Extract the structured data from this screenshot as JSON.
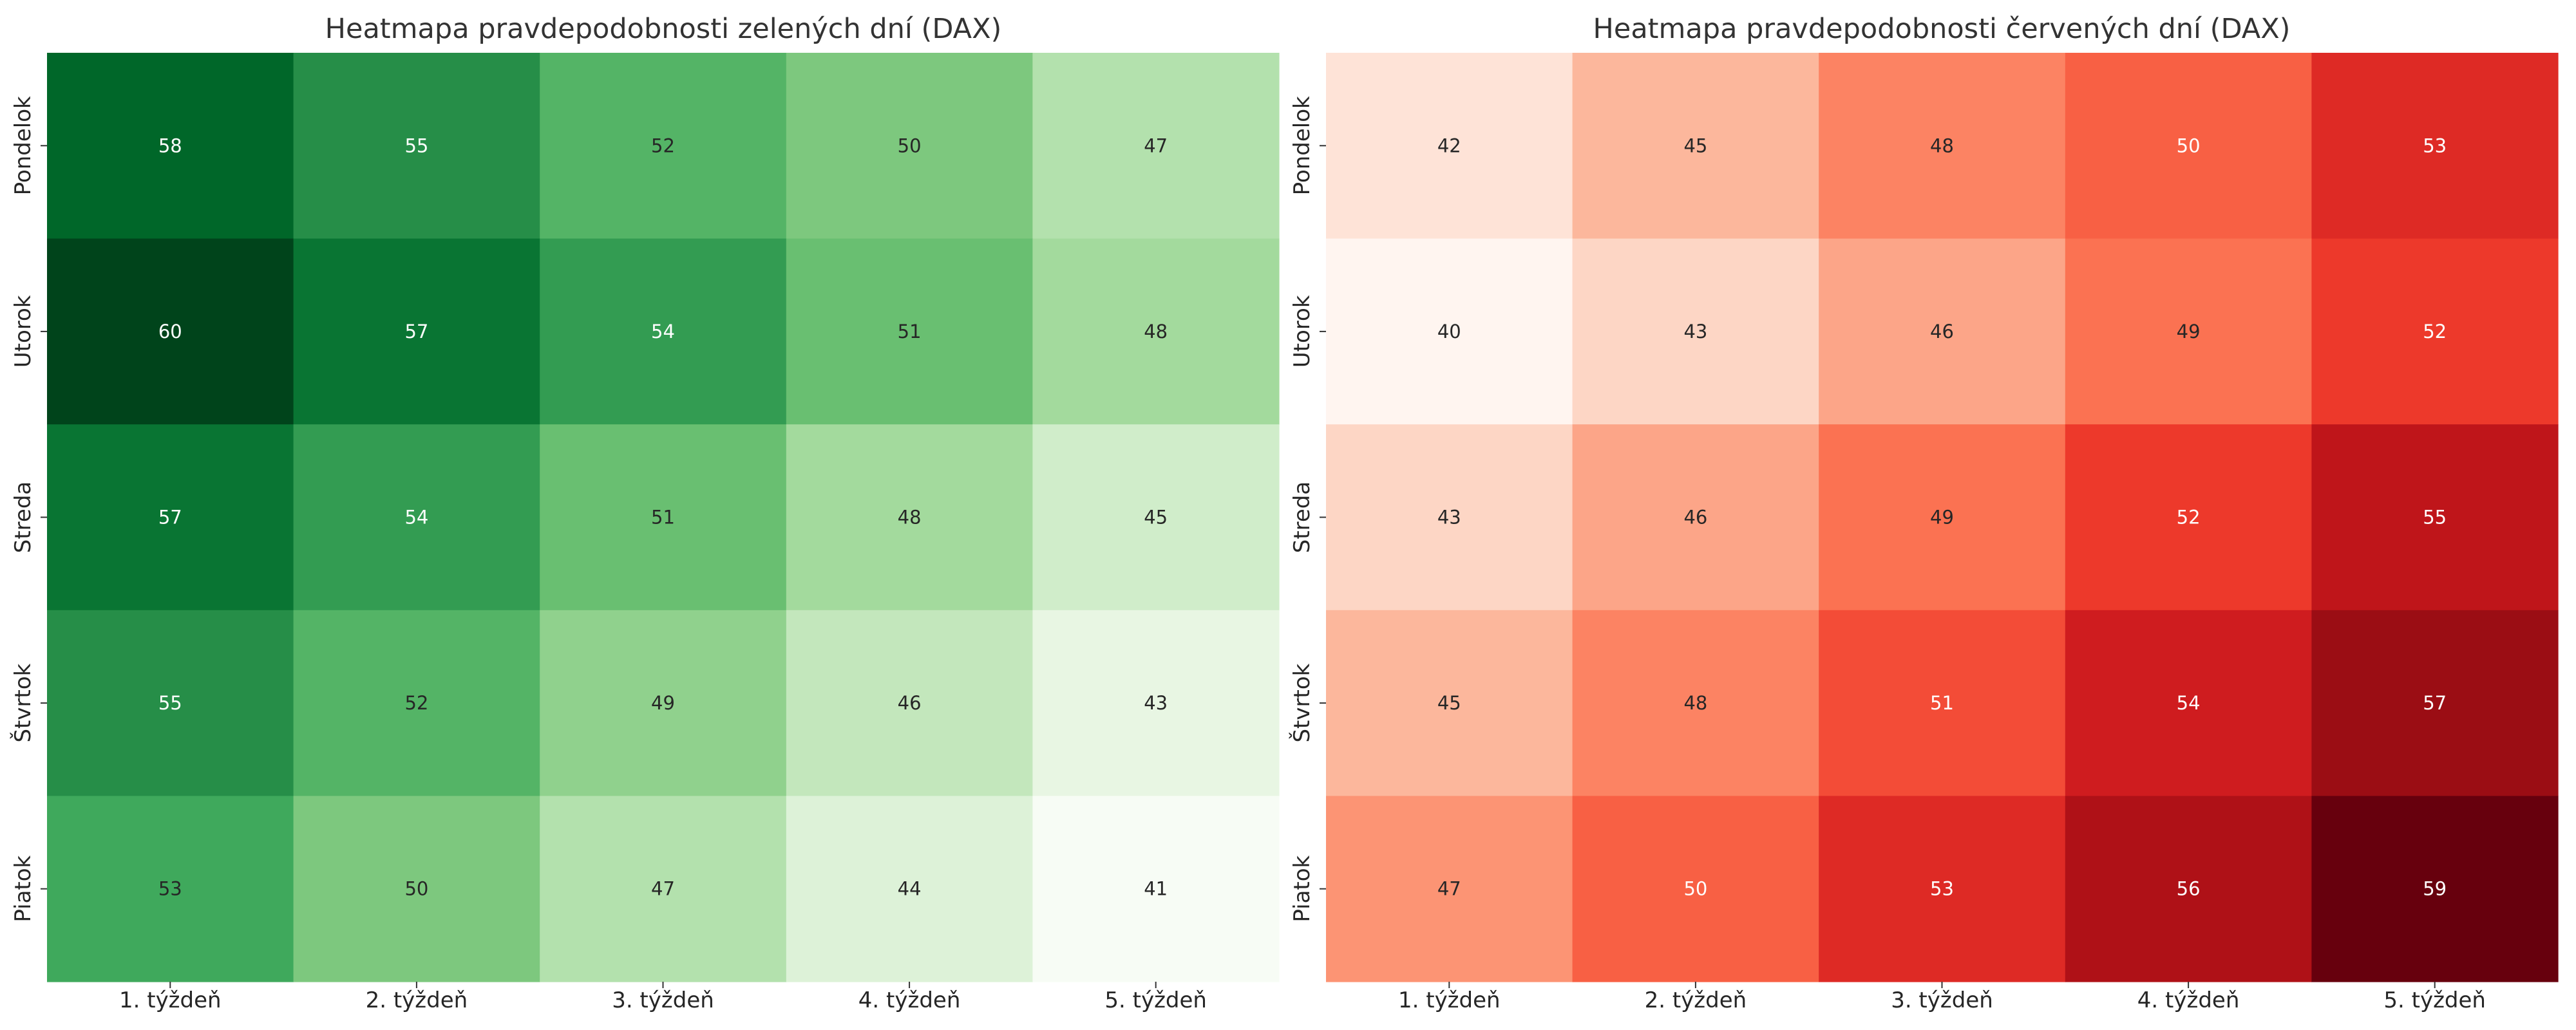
{
  "chart_data": [
    {
      "type": "heatmap",
      "title": "Heatmapa pravdepodobnosti zelených dní (DAX)",
      "colormap": "Greens",
      "x_categories": [
        "1. týždeň",
        "2. týždeň",
        "3. týždeň",
        "4. týždeň",
        "5. týždeň"
      ],
      "y_categories": [
        "Pondelok",
        "Utorok",
        "Streda",
        "Štvrtok",
        "Piatok"
      ],
      "values": [
        [
          58,
          55,
          52,
          50,
          47
        ],
        [
          60,
          57,
          54,
          51,
          48
        ],
        [
          57,
          54,
          51,
          48,
          45
        ],
        [
          55,
          52,
          49,
          46,
          43
        ],
        [
          53,
          50,
          47,
          44,
          41
        ]
      ],
      "color_range": [
        41,
        60
      ],
      "colorbar": false,
      "grid": false
    },
    {
      "type": "heatmap",
      "title": "Heatmapa pravdepodobnosti červených dní (DAX)",
      "colormap": "Reds",
      "x_categories": [
        "1. týždeň",
        "2. týždeň",
        "3. týždeň",
        "4. týždeň",
        "5. týždeň"
      ],
      "y_categories": [
        "Pondelok",
        "Utorok",
        "Streda",
        "Štvrtok",
        "Piatok"
      ],
      "values": [
        [
          42,
          45,
          48,
          50,
          53
        ],
        [
          40,
          43,
          46,
          49,
          52
        ],
        [
          43,
          46,
          49,
          52,
          55
        ],
        [
          45,
          48,
          51,
          54,
          57
        ],
        [
          47,
          50,
          53,
          56,
          59
        ]
      ],
      "color_range": [
        40,
        59
      ],
      "colorbar": false,
      "grid": false
    }
  ]
}
